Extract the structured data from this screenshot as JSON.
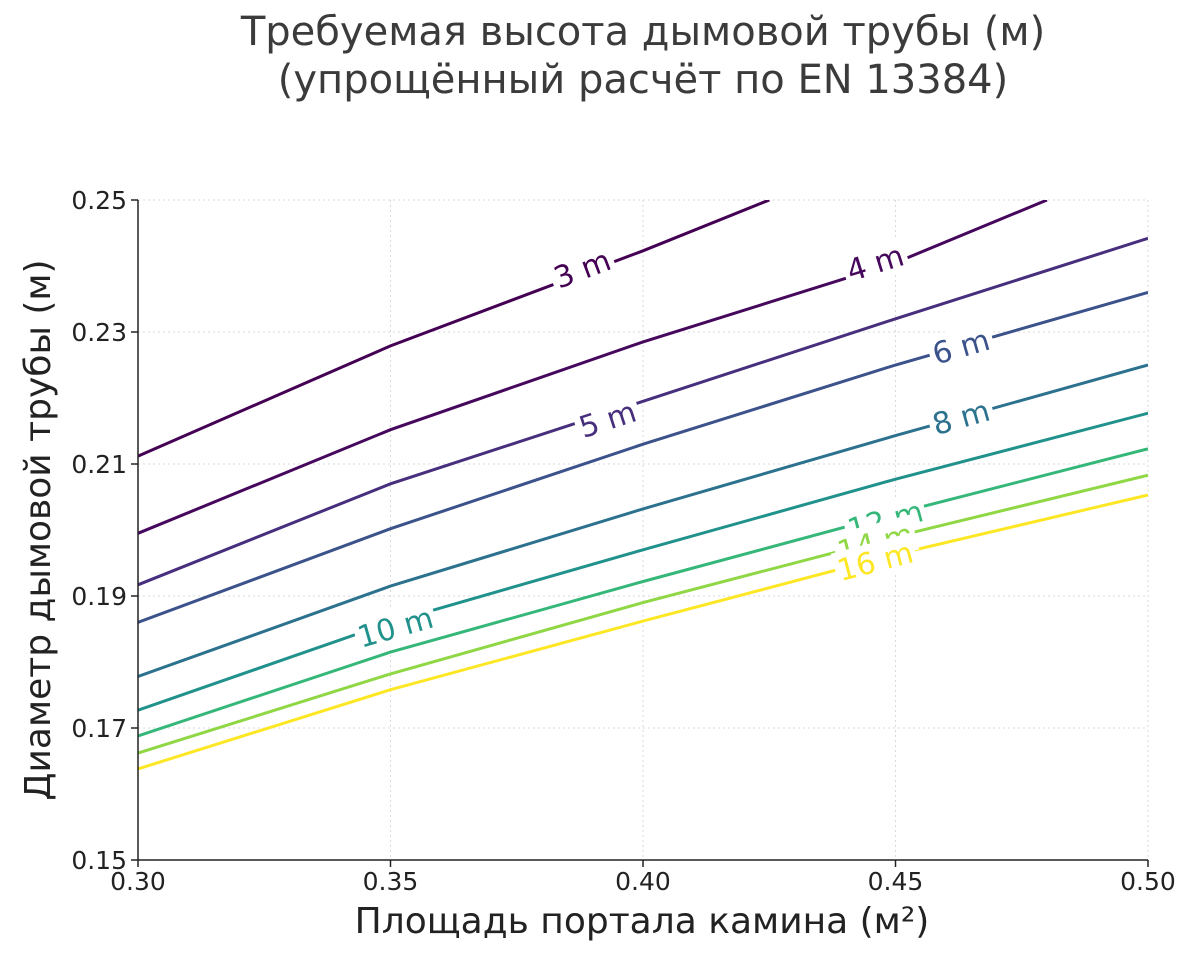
{
  "chart_data": {
    "type": "contour",
    "title_lines": [
      "Требуемая высота дымовой трубы (м)",
      "(упрощённый расчёт по EN 13384)"
    ],
    "xlabel": "Площадь портала камина (м²)",
    "ylabel": "Диаметр дымовой трубы (м)",
    "xlim": [
      0.3,
      0.5
    ],
    "ylim": [
      0.15,
      0.25
    ],
    "x_ticks": [
      {
        "value": 0.3,
        "label": "0.30"
      },
      {
        "value": 0.35,
        "label": "0.35"
      },
      {
        "value": 0.4,
        "label": "0.40"
      },
      {
        "value": 0.45,
        "label": "0.45"
      },
      {
        "value": 0.5,
        "label": "0.50"
      }
    ],
    "y_ticks": [
      {
        "value": 0.15,
        "label": "0.15"
      },
      {
        "value": 0.17,
        "label": "0.17"
      },
      {
        "value": 0.19,
        "label": "0.19"
      },
      {
        "value": 0.21,
        "label": "0.21"
      },
      {
        "value": 0.23,
        "label": "0.23"
      },
      {
        "value": 0.25,
        "label": "0.25"
      }
    ],
    "grid": true,
    "colormap": "viridis",
    "contours": [
      {
        "level": 3,
        "label": "3 m",
        "color": "#440154",
        "points": [
          [
            0.3,
            0.2112
          ],
          [
            0.35,
            0.2279
          ],
          [
            0.4,
            0.2423
          ],
          [
            0.425,
            0.25
          ]
        ],
        "label_at": [
          0.388,
          0.2395
        ]
      },
      {
        "level": 4,
        "label": "4 m",
        "color": "#46085c",
        "points": [
          [
            0.3,
            0.1995
          ],
          [
            0.35,
            0.2152
          ],
          [
            0.4,
            0.2285
          ],
          [
            0.45,
            0.2405
          ],
          [
            0.48,
            0.25
          ]
        ],
        "label_at": [
          0.446,
          0.2404
        ]
      },
      {
        "level": 5,
        "label": "5 m",
        "color": "#472f7d",
        "points": [
          [
            0.3,
            0.1917
          ],
          [
            0.35,
            0.207
          ],
          [
            0.4,
            0.2195
          ],
          [
            0.45,
            0.232
          ],
          [
            0.5,
            0.2442
          ]
        ],
        "label_at": [
          0.393,
          0.2167
        ]
      },
      {
        "level": 6,
        "label": "6 m",
        "color": "#3b528b",
        "points": [
          [
            0.3,
            0.186
          ],
          [
            0.35,
            0.2002
          ],
          [
            0.4,
            0.213
          ],
          [
            0.45,
            0.225
          ],
          [
            0.5,
            0.236
          ]
        ],
        "label_at": [
          0.463,
          0.2277
        ]
      },
      {
        "level": 8,
        "label": "8 m",
        "color": "#2c728e",
        "points": [
          [
            0.3,
            0.1778
          ],
          [
            0.35,
            0.1915
          ],
          [
            0.4,
            0.2032
          ],
          [
            0.45,
            0.2143
          ],
          [
            0.5,
            0.225
          ]
        ],
        "label_at": [
          0.463,
          0.217
        ]
      },
      {
        "level": 10,
        "label": "10 m",
        "color": "#21918c",
        "points": [
          [
            0.3,
            0.1727
          ],
          [
            0.35,
            0.186
          ],
          [
            0.4,
            0.197
          ],
          [
            0.45,
            0.2077
          ],
          [
            0.5,
            0.2177
          ]
        ],
        "label_at": [
          0.351,
          0.1852
        ]
      },
      {
        "level": 12,
        "label": "12 m",
        "color": "#35b779",
        "points": [
          [
            0.3,
            0.1688
          ],
          [
            0.35,
            0.1815
          ],
          [
            0.4,
            0.1922
          ],
          [
            0.45,
            0.2025
          ],
          [
            0.5,
            0.2123
          ]
        ],
        "label_at": [
          0.448,
          0.2014
        ]
      },
      {
        "level": 14,
        "label": "14 m",
        "color": "#8fd744",
        "points": [
          [
            0.3,
            0.1662
          ],
          [
            0.35,
            0.1782
          ],
          [
            0.4,
            0.189
          ],
          [
            0.45,
            0.199
          ],
          [
            0.5,
            0.2083
          ]
        ],
        "label_at": [
          0.446,
          0.198
        ]
      },
      {
        "level": 16,
        "label": "16 m",
        "color": "#fde725",
        "points": [
          [
            0.3,
            0.1638
          ],
          [
            0.35,
            0.1758
          ],
          [
            0.4,
            0.1862
          ],
          [
            0.45,
            0.1963
          ],
          [
            0.5,
            0.2053
          ]
        ],
        "label_at": [
          0.446,
          0.1952
        ]
      }
    ]
  }
}
